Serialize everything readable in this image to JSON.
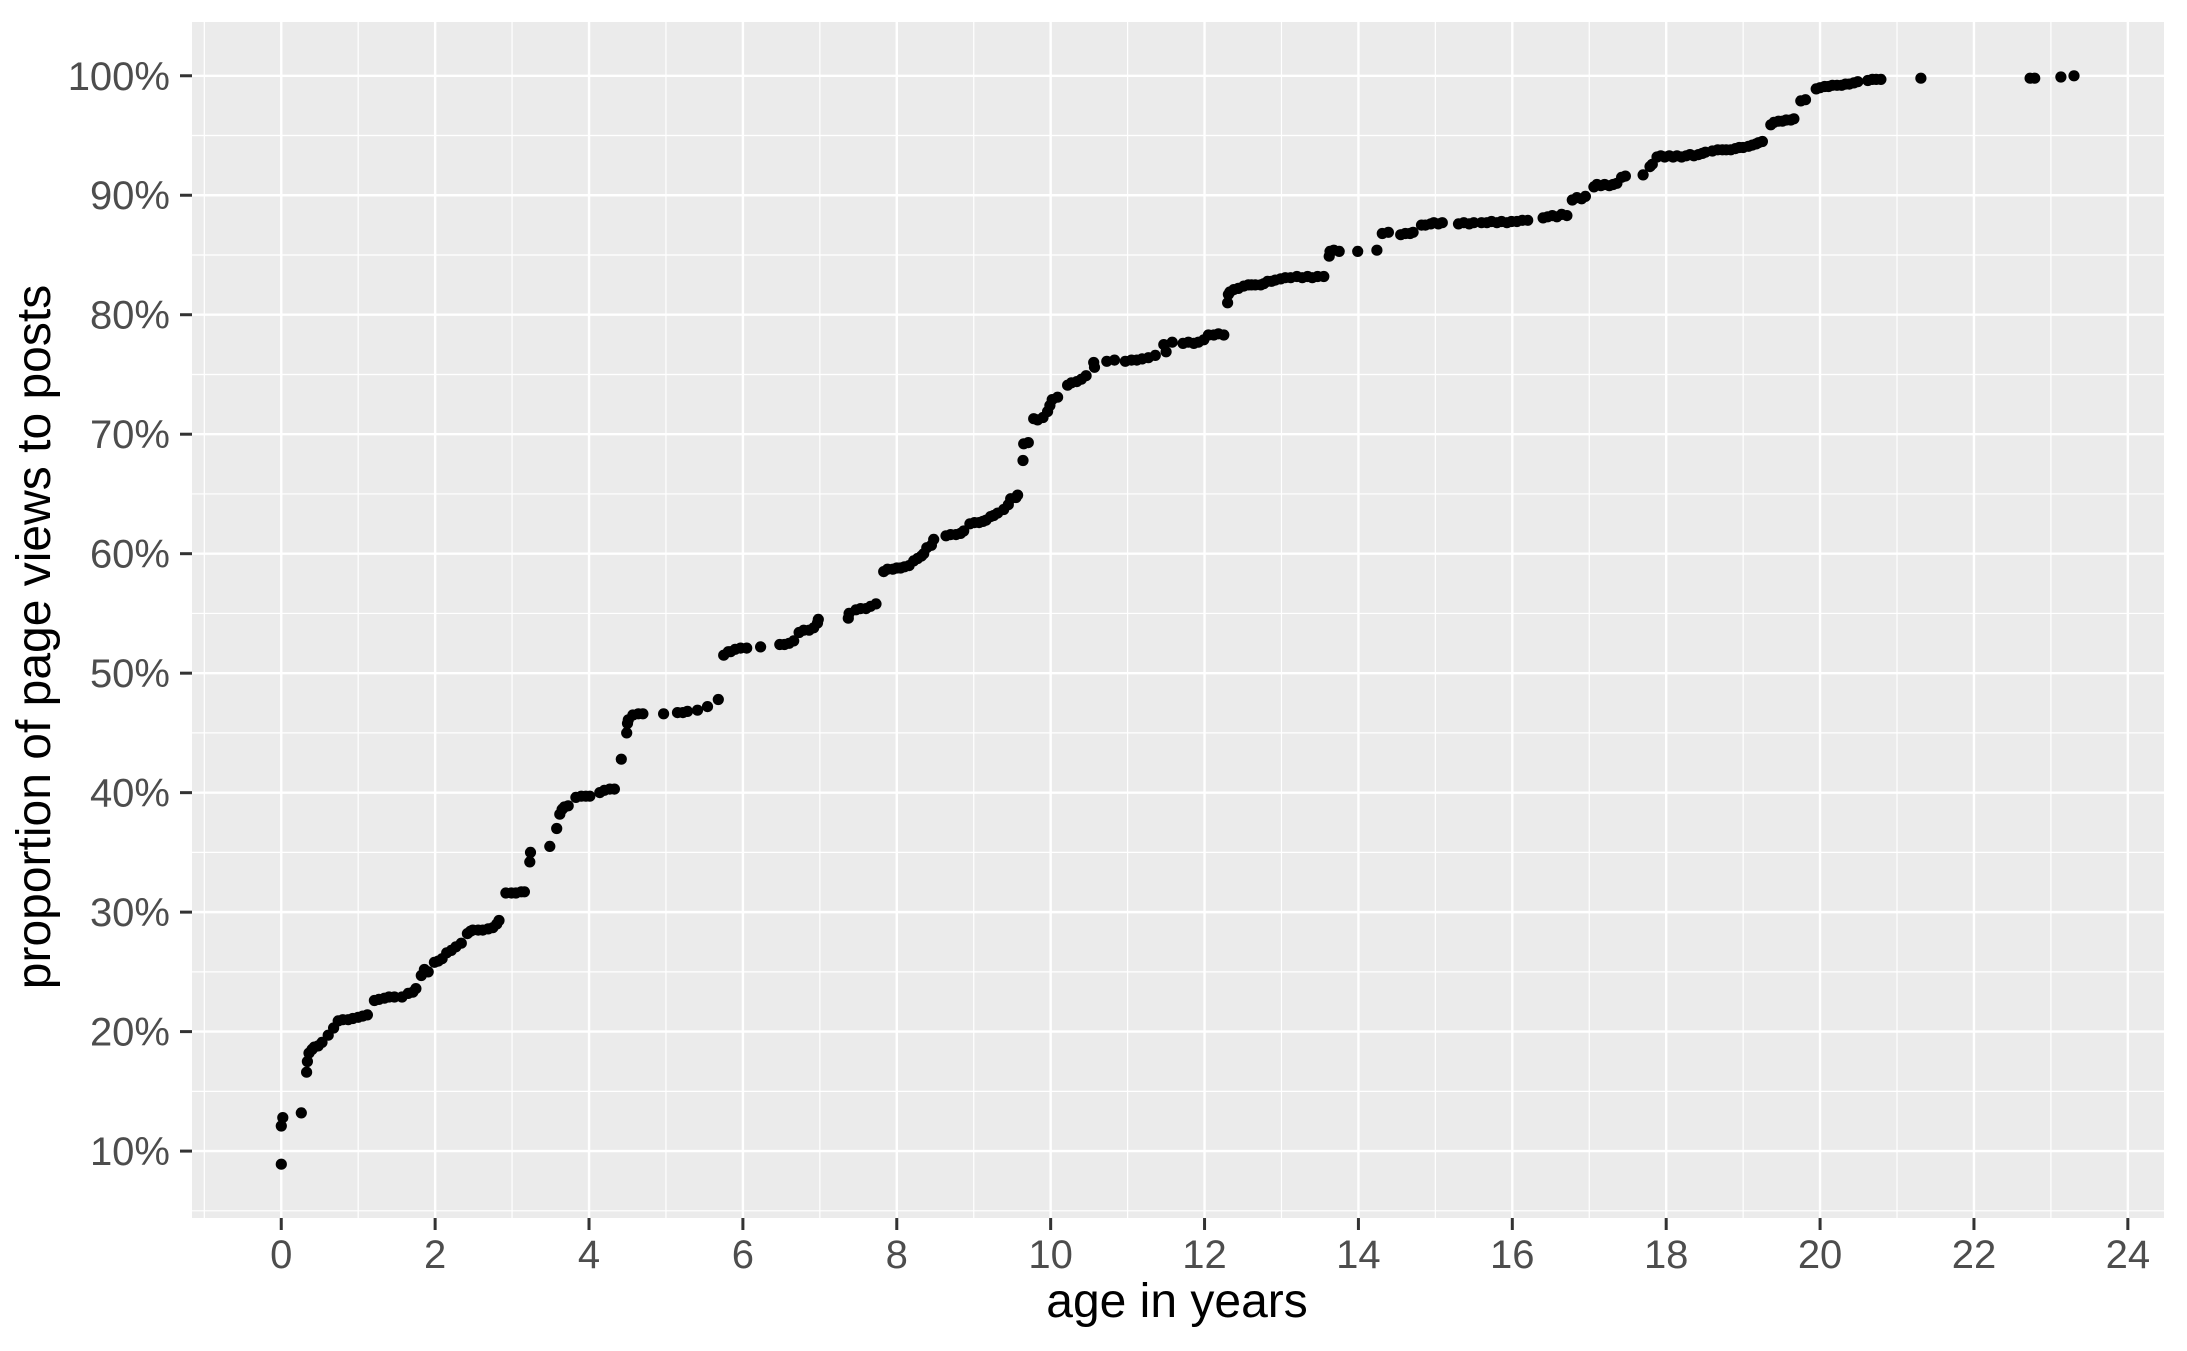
{
  "figure": {
    "page_background": "#FFFFFF",
    "panel_background": "#EBEBEB",
    "gridline_color": "#FFFFFF",
    "tick_mark_color": "#333333",
    "tick_label_color": "#4D4D4D",
    "axis_title_color": "#000000",
    "point_color": "#000000"
  },
  "chart_data": {
    "type": "scatter",
    "title": "",
    "xlabel": "age in years",
    "ylabel": "proportion of page views to posts",
    "legend": "none",
    "grid": {
      "major": true,
      "minor": true
    },
    "x_axis": {
      "lim": [
        -1.16,
        24.47
      ],
      "tick_values": [
        0,
        2,
        4,
        6,
        8,
        10,
        12,
        14,
        16,
        18,
        20,
        22,
        24
      ],
      "tick_labels": [
        "0",
        "2",
        "4",
        "6",
        "8",
        "10",
        "12",
        "14",
        "16",
        "18",
        "20",
        "22",
        "24"
      ],
      "minor_tick_values": [
        -1,
        1,
        3,
        5,
        7,
        9,
        11,
        13,
        15,
        17,
        19,
        21,
        23
      ]
    },
    "y_axis": {
      "lim": [
        4.4,
        104.5
      ],
      "tick_values": [
        10,
        20,
        30,
        40,
        50,
        60,
        70,
        80,
        90,
        100
      ],
      "tick_labels": [
        "10%",
        "20%",
        "30%",
        "40%",
        "50%",
        "60%",
        "70%",
        "80%",
        "90%",
        "100%"
      ],
      "minor_tick_values": [
        5,
        15,
        25,
        35,
        45,
        55,
        65,
        75,
        85,
        95
      ]
    },
    "points": [
      [
        0,
        8.9
      ],
      [
        0,
        12.1
      ],
      [
        0.02,
        12.8
      ],
      [
        0.26,
        13.2
      ],
      [
        0.33,
        16.6
      ],
      [
        0.34,
        17.5
      ],
      [
        0.36,
        18.2
      ],
      [
        0.4,
        18.5
      ],
      [
        0.43,
        18.7
      ],
      [
        0.48,
        18.8
      ],
      [
        0.53,
        19.1
      ],
      [
        0.61,
        19.7
      ],
      [
        0.68,
        20.3
      ],
      [
        0.74,
        20.9
      ],
      [
        0.8,
        21
      ],
      [
        0.87,
        21
      ],
      [
        0.93,
        21.1
      ],
      [
        1,
        21.2
      ],
      [
        1.06,
        21.3
      ],
      [
        1.12,
        21.4
      ],
      [
        1.21,
        22.6
      ],
      [
        1.27,
        22.7
      ],
      [
        1.34,
        22.8
      ],
      [
        1.4,
        22.9
      ],
      [
        1.47,
        22.9
      ],
      [
        1.57,
        22.9
      ],
      [
        1.65,
        23.2
      ],
      [
        1.71,
        23.3
      ],
      [
        1.75,
        23.6
      ],
      [
        1.82,
        24.7
      ],
      [
        1.86,
        25.2
      ],
      [
        1.91,
        25
      ],
      [
        1.99,
        25.8
      ],
      [
        2.04,
        25.9
      ],
      [
        2.09,
        26.1
      ],
      [
        2.15,
        26.6
      ],
      [
        2.21,
        26.8
      ],
      [
        2.27,
        27.1
      ],
      [
        2.34,
        27.4
      ],
      [
        2.42,
        28.2
      ],
      [
        2.46,
        28.4
      ],
      [
        2.49,
        28.5
      ],
      [
        2.56,
        28.5
      ],
      [
        2.62,
        28.5
      ],
      [
        2.69,
        28.6
      ],
      [
        2.75,
        28.7
      ],
      [
        2.8,
        29
      ],
      [
        2.83,
        29.3
      ],
      [
        2.92,
        31.6
      ],
      [
        2.99,
        31.6
      ],
      [
        3.05,
        31.6
      ],
      [
        3.12,
        31.7
      ],
      [
        3.16,
        31.7
      ],
      [
        3.23,
        34.2
      ],
      [
        3.24,
        35
      ],
      [
        3.49,
        35.5
      ],
      [
        3.58,
        37
      ],
      [
        3.62,
        38.2
      ],
      [
        3.65,
        38.6
      ],
      [
        3.68,
        38.8
      ],
      [
        3.73,
        38.9
      ],
      [
        3.83,
        39.6
      ],
      [
        3.9,
        39.7
      ],
      [
        3.96,
        39.7
      ],
      [
        4.01,
        39.7
      ],
      [
        4.14,
        40
      ],
      [
        4.2,
        40.2
      ],
      [
        4.27,
        40.3
      ],
      [
        4.33,
        40.3
      ],
      [
        4.42,
        42.8
      ],
      [
        4.49,
        45
      ],
      [
        4.5,
        45.8
      ],
      [
        4.51,
        46.1
      ],
      [
        4.57,
        46.5
      ],
      [
        4.64,
        46.6
      ],
      [
        4.7,
        46.6
      ],
      [
        4.97,
        46.6
      ],
      [
        5.15,
        46.7
      ],
      [
        5.22,
        46.7
      ],
      [
        5.28,
        46.8
      ],
      [
        5.41,
        46.9
      ],
      [
        5.54,
        47.2
      ],
      [
        5.68,
        47.8
      ],
      [
        5.75,
        51.5
      ],
      [
        5.81,
        51.8
      ],
      [
        5.84,
        51.8
      ],
      [
        5.9,
        52
      ],
      [
        5.97,
        52.1
      ],
      [
        6.05,
        52.1
      ],
      [
        6.23,
        52.2
      ],
      [
        6.48,
        52.4
      ],
      [
        6.54,
        52.4
      ],
      [
        6.6,
        52.5
      ],
      [
        6.66,
        52.7
      ],
      [
        6.73,
        53.4
      ],
      [
        6.79,
        53.6
      ],
      [
        6.86,
        53.6
      ],
      [
        6.92,
        53.8
      ],
      [
        6.97,
        54.2
      ],
      [
        6.98,
        54.5
      ],
      [
        7.37,
        54.6
      ],
      [
        7.38,
        55
      ],
      [
        7.47,
        55.3
      ],
      [
        7.53,
        55.4
      ],
      [
        7.6,
        55.4
      ],
      [
        7.66,
        55.6
      ],
      [
        7.73,
        55.8
      ],
      [
        7.83,
        58.5
      ],
      [
        7.88,
        58.7
      ],
      [
        7.95,
        58.7
      ],
      [
        8,
        58.8
      ],
      [
        8.05,
        58.8
      ],
      [
        8.1,
        58.9
      ],
      [
        8.16,
        59
      ],
      [
        8.22,
        59.4
      ],
      [
        8.27,
        59.6
      ],
      [
        8.32,
        59.8
      ],
      [
        8.35,
        60
      ],
      [
        8.39,
        60.5
      ],
      [
        8.45,
        60.7
      ],
      [
        8.48,
        61.2
      ],
      [
        8.64,
        61.5
      ],
      [
        8.7,
        61.6
      ],
      [
        8.77,
        61.6
      ],
      [
        8.83,
        61.7
      ],
      [
        8.87,
        61.9
      ],
      [
        8.95,
        62.5
      ],
      [
        9.01,
        62.6
      ],
      [
        9.07,
        62.6
      ],
      [
        9.12,
        62.7
      ],
      [
        9.16,
        62.8
      ],
      [
        9.22,
        63.1
      ],
      [
        9.26,
        63.2
      ],
      [
        9.31,
        63.4
      ],
      [
        9.39,
        63.7
      ],
      [
        9.45,
        64.1
      ],
      [
        9.48,
        64.6
      ],
      [
        9.55,
        64.7
      ],
      [
        9.57,
        64.9
      ],
      [
        9.64,
        67.8
      ],
      [
        9.65,
        69.2
      ],
      [
        9.71,
        69.3
      ],
      [
        9.78,
        71.3
      ],
      [
        9.83,
        71.2
      ],
      [
        9.9,
        71.4
      ],
      [
        9.96,
        71.9
      ],
      [
        9.99,
        72.4
      ],
      [
        10.02,
        72.9
      ],
      [
        10.09,
        73.1
      ],
      [
        10.22,
        74.1
      ],
      [
        10.27,
        74.3
      ],
      [
        10.34,
        74.4
      ],
      [
        10.4,
        74.6
      ],
      [
        10.46,
        74.9
      ],
      [
        10.56,
        76
      ],
      [
        10.57,
        75.6
      ],
      [
        10.73,
        76.1
      ],
      [
        10.83,
        76.2
      ],
      [
        10.97,
        76.1
      ],
      [
        11.05,
        76.2
      ],
      [
        11.12,
        76.2
      ],
      [
        11.19,
        76.3
      ],
      [
        11.27,
        76.4
      ],
      [
        11.36,
        76.6
      ],
      [
        11.47,
        77.5
      ],
      [
        11.5,
        76.9
      ],
      [
        11.58,
        77.7
      ],
      [
        11.72,
        77.6
      ],
      [
        11.79,
        77.7
      ],
      [
        11.86,
        77.6
      ],
      [
        11.92,
        77.7
      ],
      [
        11.99,
        77.9
      ],
      [
        12.05,
        78.3
      ],
      [
        12.12,
        78.3
      ],
      [
        12.18,
        78.4
      ],
      [
        12.25,
        78.3
      ],
      [
        12.3,
        81
      ],
      [
        12.31,
        81.7
      ],
      [
        12.33,
        81.9
      ],
      [
        12.38,
        82.1
      ],
      [
        12.44,
        82.2
      ],
      [
        12.51,
        82.4
      ],
      [
        12.57,
        82.5
      ],
      [
        12.61,
        82.5
      ],
      [
        12.66,
        82.5
      ],
      [
        12.73,
        82.5
      ],
      [
        12.77,
        82.6
      ],
      [
        12.82,
        82.8
      ],
      [
        12.87,
        82.8
      ],
      [
        12.92,
        82.9
      ],
      [
        12.99,
        83
      ],
      [
        13.05,
        83.1
      ],
      [
        13.12,
        83.1
      ],
      [
        13.2,
        83.2
      ],
      [
        13.27,
        83.1
      ],
      [
        13.34,
        83.2
      ],
      [
        13.4,
        83.1
      ],
      [
        13.47,
        83.2
      ],
      [
        13.55,
        83.2
      ],
      [
        13.62,
        84.9
      ],
      [
        13.63,
        85.3
      ],
      [
        13.68,
        85.4
      ],
      [
        13.75,
        85.3
      ],
      [
        13.99,
        85.3
      ],
      [
        14.24,
        85.4
      ],
      [
        14.31,
        86.8
      ],
      [
        14.39,
        86.9
      ],
      [
        14.55,
        86.7
      ],
      [
        14.61,
        86.8
      ],
      [
        14.67,
        86.8
      ],
      [
        14.71,
        86.9
      ],
      [
        14.82,
        87.5
      ],
      [
        14.87,
        87.5
      ],
      [
        14.94,
        87.6
      ],
      [
        14.98,
        87.7
      ],
      [
        15.04,
        87.6
      ],
      [
        15.09,
        87.7
      ],
      [
        15.3,
        87.6
      ],
      [
        15.37,
        87.7
      ],
      [
        15.44,
        87.6
      ],
      [
        15.5,
        87.7
      ],
      [
        15.6,
        87.7
      ],
      [
        15.67,
        87.7
      ],
      [
        15.73,
        87.8
      ],
      [
        15.8,
        87.7
      ],
      [
        15.86,
        87.8
      ],
      [
        15.93,
        87.7
      ],
      [
        15.99,
        87.8
      ],
      [
        16.06,
        87.8
      ],
      [
        16.13,
        87.9
      ],
      [
        16.2,
        87.9
      ],
      [
        16.4,
        88.1
      ],
      [
        16.46,
        88.2
      ],
      [
        16.52,
        88.3
      ],
      [
        16.58,
        88.2
      ],
      [
        16.64,
        88.4
      ],
      [
        16.71,
        88.3
      ],
      [
        16.78,
        89.6
      ],
      [
        16.84,
        89.8
      ],
      [
        16.9,
        89.7
      ],
      [
        16.95,
        89.9
      ],
      [
        17.06,
        90.7
      ],
      [
        17.1,
        90.9
      ],
      [
        17.15,
        90.8
      ],
      [
        17.2,
        90.9
      ],
      [
        17.26,
        90.8
      ],
      [
        17.31,
        90.9
      ],
      [
        17.36,
        91
      ],
      [
        17.42,
        91.5
      ],
      [
        17.47,
        91.6
      ],
      [
        17.7,
        91.7
      ],
      [
        17.79,
        92.4
      ],
      [
        17.82,
        92.6
      ],
      [
        17.88,
        93.2
      ],
      [
        17.93,
        93.3
      ],
      [
        17.98,
        93.2
      ],
      [
        18.04,
        93.3
      ],
      [
        18.09,
        93.2
      ],
      [
        18.14,
        93.3
      ],
      [
        18.2,
        93.2
      ],
      [
        18.26,
        93.3
      ],
      [
        18.31,
        93.4
      ],
      [
        18.36,
        93.3
      ],
      [
        18.42,
        93.4
      ],
      [
        18.47,
        93.5
      ],
      [
        18.51,
        93.6
      ],
      [
        18.6,
        93.7
      ],
      [
        18.67,
        93.8
      ],
      [
        18.73,
        93.8
      ],
      [
        18.78,
        93.8
      ],
      [
        18.84,
        93.8
      ],
      [
        18.9,
        93.9
      ],
      [
        18.95,
        94
      ],
      [
        19,
        94
      ],
      [
        19.07,
        94.1
      ],
      [
        19.12,
        94.2
      ],
      [
        19.17,
        94.3
      ],
      [
        19.2,
        94.4
      ],
      [
        19.25,
        94.5
      ],
      [
        19.36,
        95.9
      ],
      [
        19.4,
        96.1
      ],
      [
        19.46,
        96.2
      ],
      [
        19.51,
        96.2
      ],
      [
        19.56,
        96.3
      ],
      [
        19.62,
        96.3
      ],
      [
        19.66,
        96.4
      ],
      [
        19.75,
        97.9
      ],
      [
        19.81,
        98
      ],
      [
        19.95,
        98.9
      ],
      [
        20,
        99
      ],
      [
        20.06,
        99.1
      ],
      [
        20.11,
        99.1
      ],
      [
        20.16,
        99.2
      ],
      [
        20.22,
        99.2
      ],
      [
        20.28,
        99.2
      ],
      [
        20.33,
        99.3
      ],
      [
        20.38,
        99.3
      ],
      [
        20.44,
        99.4
      ],
      [
        20.49,
        99.5
      ],
      [
        20.62,
        99.6
      ],
      [
        20.68,
        99.7
      ],
      [
        20.73,
        99.7
      ],
      [
        20.79,
        99.7
      ],
      [
        21.31,
        99.8
      ],
      [
        22.73,
        99.8
      ],
      [
        22.79,
        99.8
      ],
      [
        23.13,
        99.9
      ],
      [
        23.3,
        100
      ]
    ]
  }
}
